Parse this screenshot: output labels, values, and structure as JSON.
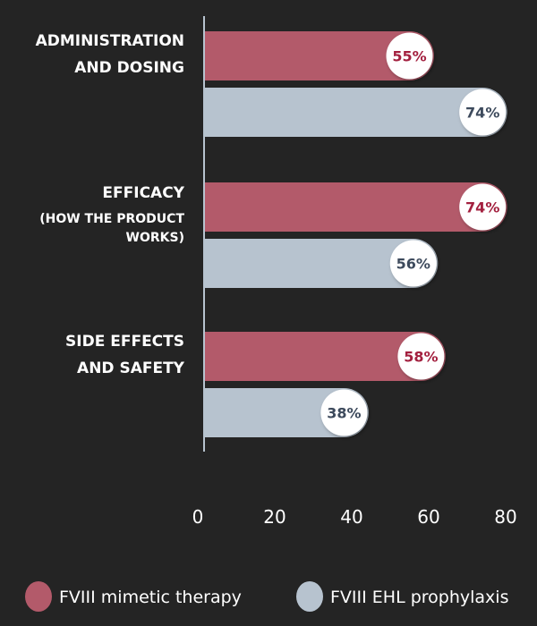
{
  "chart_data": {
    "type": "bar",
    "orientation": "horizontal",
    "categories": [
      {
        "lines": [
          "ADMINISTRATION",
          "AND DOSING"
        ]
      },
      {
        "lines": [
          "EFFICACY"
        ],
        "sub_lines": [
          "(HOW THE PRODUCT",
          "WORKS)"
        ]
      },
      {
        "lines": [
          "SIDE EFFECTS",
          "AND SAFETY"
        ]
      }
    ],
    "series": [
      {
        "name": "FVIII mimetic therapy",
        "values": [
          55,
          74,
          58
        ],
        "labels": [
          "55%",
          "74%",
          "58%"
        ],
        "color": "#b35a6a",
        "label_color": "#a3203f"
      },
      {
        "name": "FVIII EHL prophylaxis",
        "values": [
          74,
          56,
          38
        ],
        "labels": [
          "74%",
          "56%",
          "38%"
        ],
        "color": "#b7c3cf",
        "label_color": "#3d4a5c"
      }
    ],
    "xlim": [
      0,
      80
    ],
    "xticks": [
      "0",
      "20",
      "40",
      "60",
      "80"
    ],
    "grid": false,
    "legend_position": "bottom",
    "background": "#242424"
  }
}
